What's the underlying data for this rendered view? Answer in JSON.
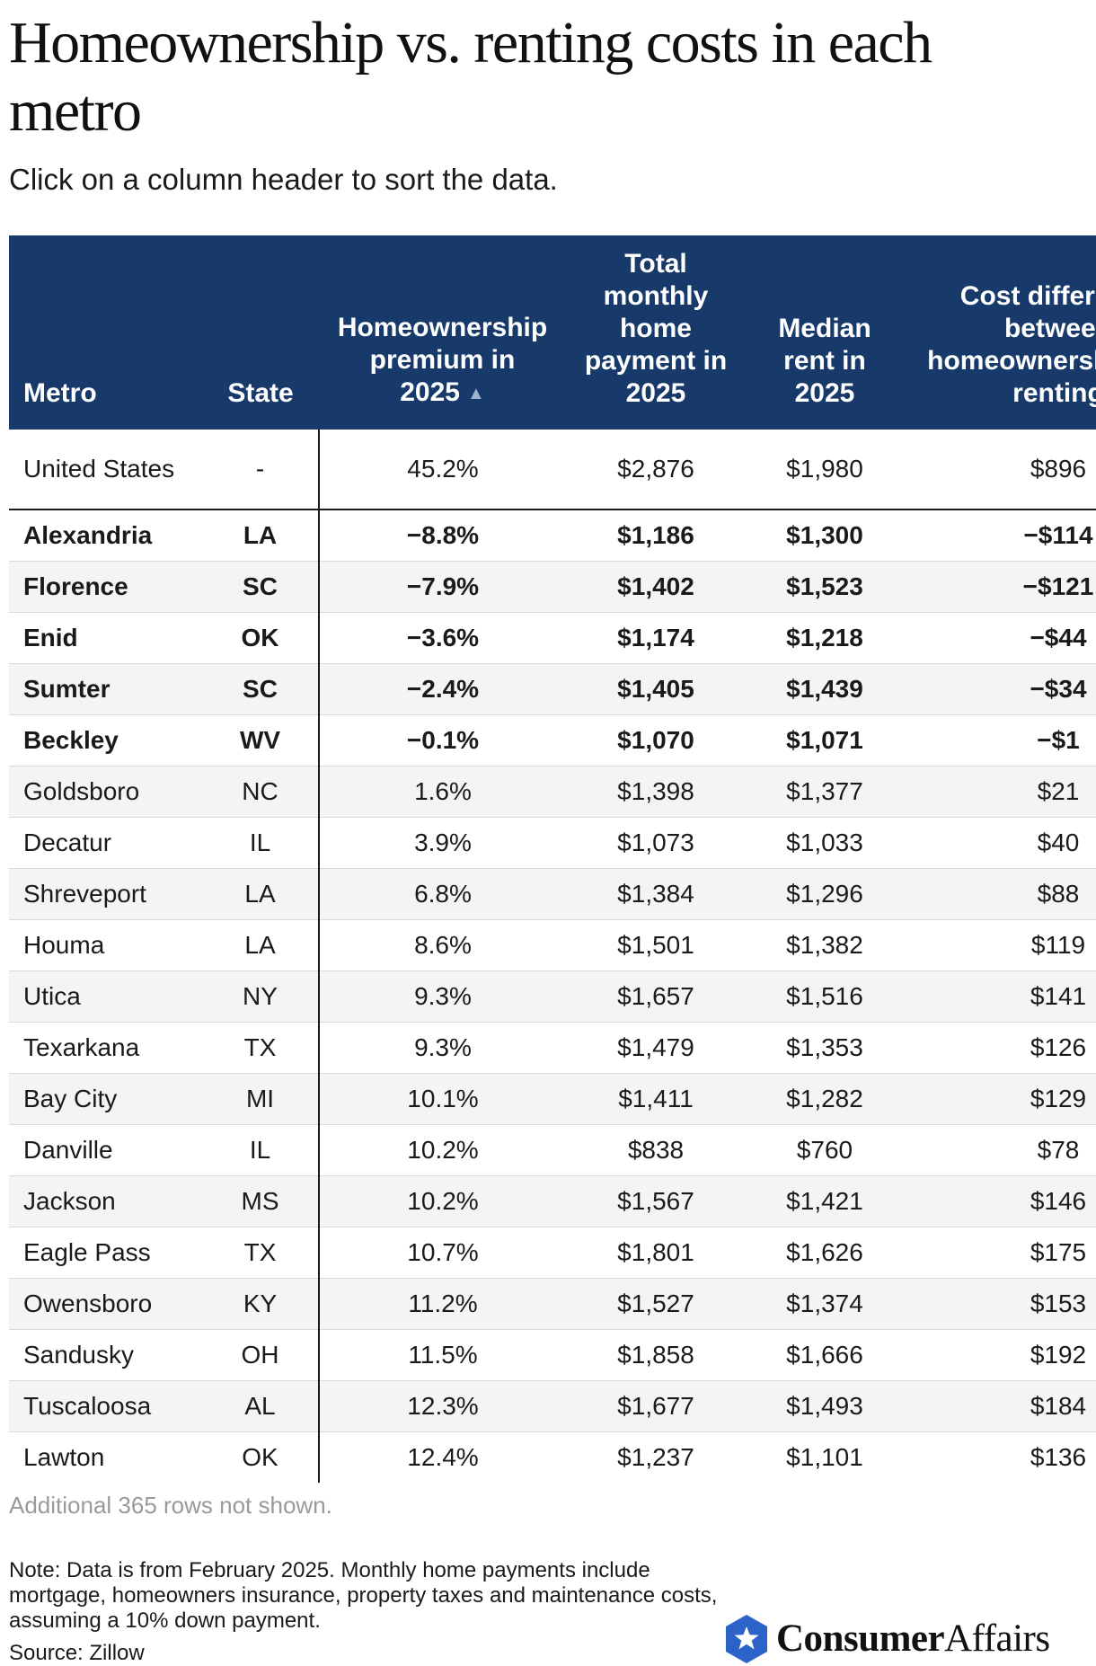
{
  "title": "Homeownership vs. renting costs in each metro",
  "subtitle": "Click on a column header to sort the data.",
  "colors": {
    "header_bg": "#173a6b",
    "header_text": "#ffffff",
    "zebra": "#f4f4f4",
    "logo_blue": "#2b63c8"
  },
  "chart_data": {
    "type": "table",
    "columns": [
      "Metro",
      "State",
      "Homeownership premium in 2025",
      "Total monthly home payment in 2025",
      "Median rent in 2025",
      "Cost difference between homeownership and renting"
    ],
    "sort": {
      "column": "Homeownership premium in 2025",
      "direction": "ascending",
      "indicator": "▲"
    },
    "rows": [
      {
        "metro": "United States",
        "state": "-",
        "premium": "45.2%",
        "payment": "$2,876",
        "rent": "$1,980",
        "diff": "$896",
        "bold": false,
        "summary": true
      },
      {
        "metro": "Alexandria",
        "state": "LA",
        "premium": "−8.8%",
        "payment": "$1,186",
        "rent": "$1,300",
        "diff": "−$114",
        "bold": true
      },
      {
        "metro": "Florence",
        "state": "SC",
        "premium": "−7.9%",
        "payment": "$1,402",
        "rent": "$1,523",
        "diff": "−$121",
        "bold": true
      },
      {
        "metro": "Enid",
        "state": "OK",
        "premium": "−3.6%",
        "payment": "$1,174",
        "rent": "$1,218",
        "diff": "−$44",
        "bold": true
      },
      {
        "metro": "Sumter",
        "state": "SC",
        "premium": "−2.4%",
        "payment": "$1,405",
        "rent": "$1,439",
        "diff": "−$34",
        "bold": true
      },
      {
        "metro": "Beckley",
        "state": "WV",
        "premium": "−0.1%",
        "payment": "$1,070",
        "rent": "$1,071",
        "diff": "−$1",
        "bold": true
      },
      {
        "metro": "Goldsboro",
        "state": "NC",
        "premium": "1.6%",
        "payment": "$1,398",
        "rent": "$1,377",
        "diff": "$21",
        "bold": false
      },
      {
        "metro": "Decatur",
        "state": "IL",
        "premium": "3.9%",
        "payment": "$1,073",
        "rent": "$1,033",
        "diff": "$40",
        "bold": false
      },
      {
        "metro": "Shreveport",
        "state": "LA",
        "premium": "6.8%",
        "payment": "$1,384",
        "rent": "$1,296",
        "diff": "$88",
        "bold": false
      },
      {
        "metro": "Houma",
        "state": "LA",
        "premium": "8.6%",
        "payment": "$1,501",
        "rent": "$1,382",
        "diff": "$119",
        "bold": false
      },
      {
        "metro": "Utica",
        "state": "NY",
        "premium": "9.3%",
        "payment": "$1,657",
        "rent": "$1,516",
        "diff": "$141",
        "bold": false
      },
      {
        "metro": "Texarkana",
        "state": "TX",
        "premium": "9.3%",
        "payment": "$1,479",
        "rent": "$1,353",
        "diff": "$126",
        "bold": false
      },
      {
        "metro": "Bay City",
        "state": "MI",
        "premium": "10.1%",
        "payment": "$1,411",
        "rent": "$1,282",
        "diff": "$129",
        "bold": false
      },
      {
        "metro": "Danville",
        "state": "IL",
        "premium": "10.2%",
        "payment": "$838",
        "rent": "$760",
        "diff": "$78",
        "bold": false
      },
      {
        "metro": "Jackson",
        "state": "MS",
        "premium": "10.2%",
        "payment": "$1,567",
        "rent": "$1,421",
        "diff": "$146",
        "bold": false
      },
      {
        "metro": "Eagle Pass",
        "state": "TX",
        "premium": "10.7%",
        "payment": "$1,801",
        "rent": "$1,626",
        "diff": "$175",
        "bold": false
      },
      {
        "metro": "Owensboro",
        "state": "KY",
        "premium": "11.2%",
        "payment": "$1,527",
        "rent": "$1,374",
        "diff": "$153",
        "bold": false
      },
      {
        "metro": "Sandusky",
        "state": "OH",
        "premium": "11.5%",
        "payment": "$1,858",
        "rent": "$1,666",
        "diff": "$192",
        "bold": false
      },
      {
        "metro": "Tuscaloosa",
        "state": "AL",
        "premium": "12.3%",
        "payment": "$1,677",
        "rent": "$1,493",
        "diff": "$184",
        "bold": false
      },
      {
        "metro": "Lawton",
        "state": "OK",
        "premium": "12.4%",
        "payment": "$1,237",
        "rent": "$1,101",
        "diff": "$136",
        "bold": false
      }
    ]
  },
  "more_rows": "Additional 365 rows not shown.",
  "note": "Note: Data is from February 2025. Monthly home payments include mortgage, homeowners insurance, property taxes and maintenance costs, assuming a 10% down payment.",
  "source": "Source: Zillow",
  "logo": {
    "icon": "star-shield-icon",
    "strong": "Consumer",
    "light": "Affairs"
  }
}
